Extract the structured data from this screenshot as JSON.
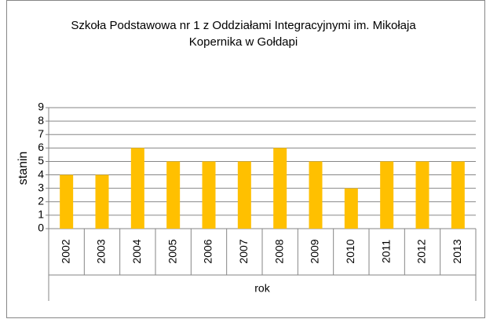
{
  "chart_data": {
    "type": "bar",
    "title": "Szkoła Podstawowa nr 1 z Oddziałami Integracyjnymi im. Mikołaja Kopernika w Gołdapi",
    "x_label": "rok",
    "y_label": "stanin",
    "categories": [
      "2002",
      "2003",
      "2004",
      "2005",
      "2006",
      "2007",
      "2008",
      "2009",
      "2010",
      "2011",
      "2012",
      "2013"
    ],
    "values": [
      4,
      4,
      6,
      5,
      5,
      5,
      6,
      5,
      3,
      5,
      5,
      5
    ],
    "color": "#ffc000",
    "ylim": [
      0,
      9
    ],
    "yticks": [
      0,
      1,
      2,
      3,
      4,
      5,
      6,
      7,
      8,
      9
    ],
    "grid": true
  }
}
